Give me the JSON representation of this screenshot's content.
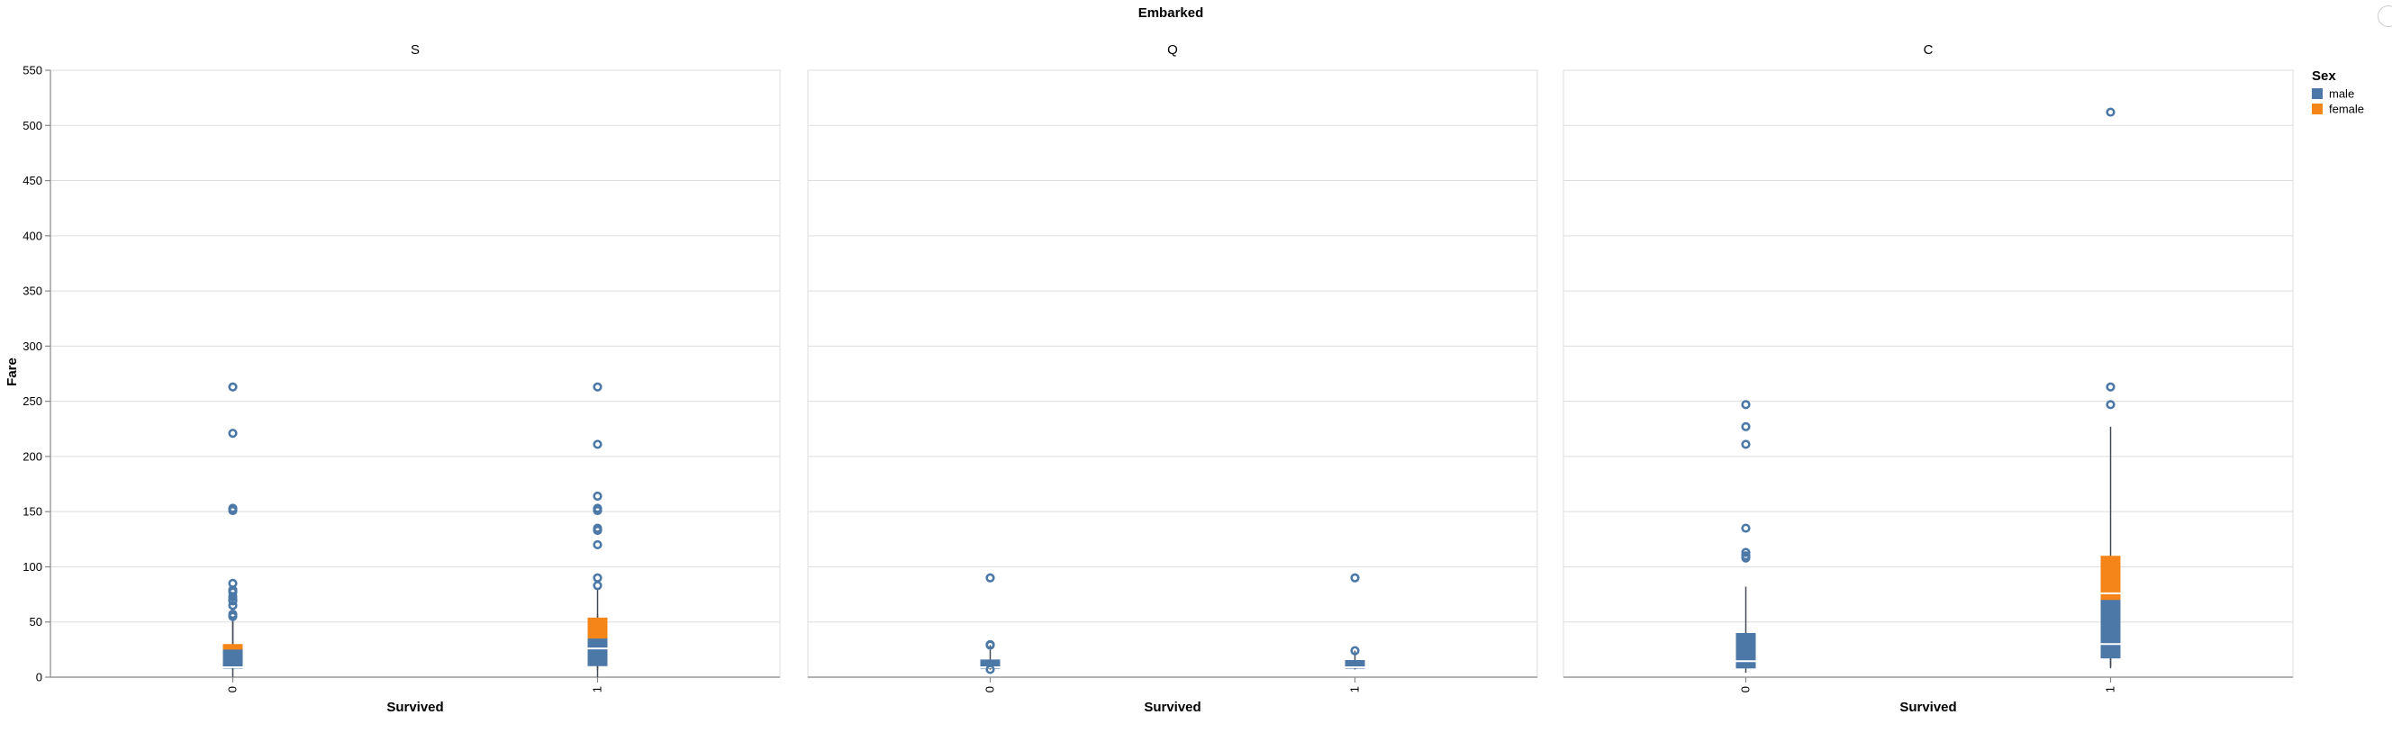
{
  "chart_data": {
    "type": "boxplot",
    "title": "Embarked",
    "xlabel": "Survived",
    "ylabel": "Fare",
    "ylim": [
      0,
      550
    ],
    "yticks": [
      0,
      50,
      100,
      150,
      200,
      250,
      300,
      350,
      400,
      450,
      500,
      550
    ],
    "categories": [
      "0",
      "1"
    ],
    "grid": true,
    "colors": {
      "male": "#4c78a8",
      "female": "#f58518"
    },
    "legend": {
      "title": "Sex",
      "placement": "top-right",
      "entries": [
        {
          "name": "male",
          "color": "#4c78a8"
        },
        {
          "name": "female",
          "color": "#f58518"
        }
      ]
    },
    "facets": [
      {
        "name": "S",
        "boxes": [
          {
            "x": "0",
            "sex": "male",
            "q1": 7.8,
            "median": 9.0,
            "q3": 25.0,
            "min": 0,
            "max": 52
          },
          {
            "x": "0",
            "sex": "female",
            "q1": 9.0,
            "median": 17.0,
            "q3": 30.0,
            "min": 6.5,
            "max": 50
          },
          {
            "x": "1",
            "sex": "female",
            "q1": 14.0,
            "median": 26.0,
            "q3": 54.0,
            "min": 7.0,
            "max": 80
          },
          {
            "x": "1",
            "sex": "male",
            "q1": 10.0,
            "median": 26.0,
            "q3": 35.0,
            "min": 0,
            "max": 57
          }
        ],
        "outliers": [
          {
            "x": "0",
            "values": [
              263,
              221,
              153,
              151,
              85,
              79,
              77,
              73,
              70,
              69,
              65,
              57,
              55
            ]
          },
          {
            "x": "1",
            "values": [
              263,
              211,
              164,
              153,
              151,
              135,
              133,
              120,
              90,
              83
            ]
          }
        ]
      },
      {
        "name": "Q",
        "boxes": [
          {
            "x": "0",
            "sex": "male",
            "q1": 7.75,
            "median": 9.0,
            "q3": 16.0,
            "min": 6.75,
            "max": 29
          },
          {
            "x": "1",
            "sex": "male",
            "q1": 7.75,
            "median": 9.0,
            "q3": 15.5,
            "min": 7.0,
            "max": 24
          }
        ],
        "outliers": [
          {
            "x": "0",
            "values": [
              90,
              29.5,
              29,
              7.0
            ]
          },
          {
            "x": "1",
            "values": [
              90,
              24
            ]
          }
        ]
      },
      {
        "name": "C",
        "boxes": [
          {
            "x": "0",
            "sex": "male",
            "q1": 7.9,
            "median": 14.5,
            "q3": 40.0,
            "min": 4,
            "max": 82
          },
          {
            "x": "1",
            "sex": "female",
            "q1": 30.0,
            "median": 76.0,
            "q3": 110.0,
            "min": 10,
            "max": 227
          },
          {
            "x": "1",
            "sex": "male",
            "q1": 17.0,
            "median": 30.0,
            "q3": 70.0,
            "min": 8,
            "max": 90
          }
        ],
        "outliers": [
          {
            "x": "0",
            "values": [
              247,
              227,
              211,
              135,
              113,
              110,
              108
            ]
          },
          {
            "x": "1",
            "values": [
              512,
              263,
              247
            ]
          }
        ]
      }
    ]
  }
}
